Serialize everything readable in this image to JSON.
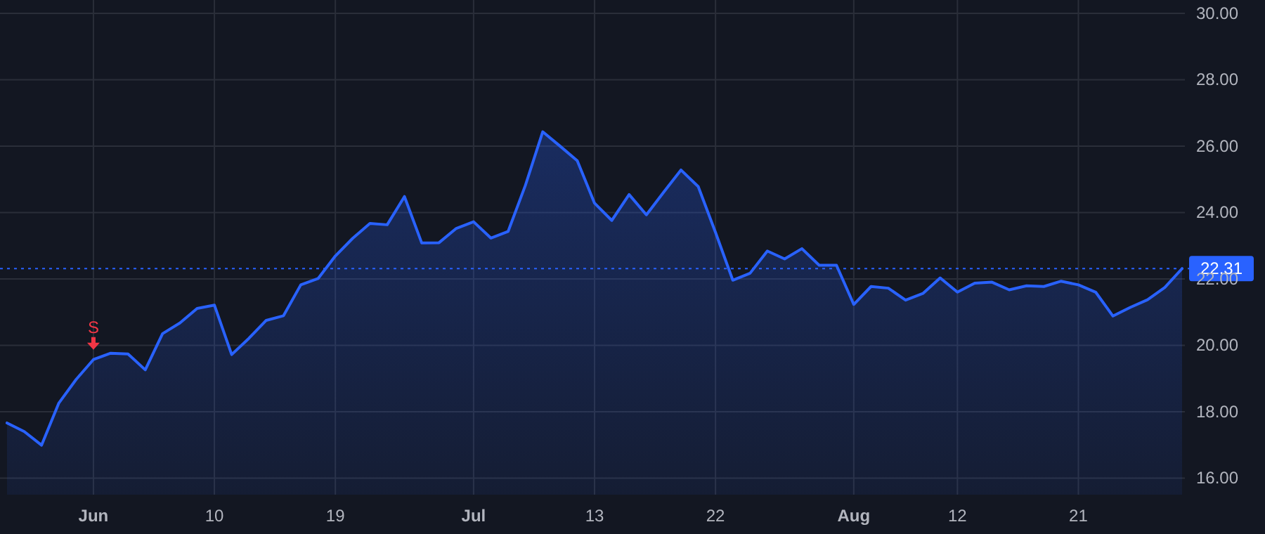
{
  "chart_data": {
    "type": "area",
    "categories": [
      null,
      null,
      null,
      null,
      null,
      "Jun",
      null,
      null,
      null,
      null,
      null,
      null,
      "10",
      null,
      null,
      null,
      null,
      null,
      null,
      "19",
      null,
      null,
      null,
      null,
      null,
      null,
      null,
      "Jul",
      null,
      null,
      null,
      null,
      null,
      null,
      "13",
      null,
      null,
      null,
      null,
      null,
      null,
      "22",
      null,
      null,
      null,
      null,
      null,
      null,
      null,
      "Aug",
      null,
      null,
      null,
      null,
      null,
      "12",
      null,
      null,
      null,
      null,
      null,
      null,
      "21",
      null,
      null,
      null,
      null,
      null,
      null
    ],
    "series": [
      {
        "color": "#2962ff",
        "values": [
          17.66,
          17.4,
          16.99,
          18.26,
          18.97,
          19.57,
          19.76,
          19.74,
          19.26,
          20.35,
          20.67,
          21.11,
          21.21,
          19.72,
          20.21,
          20.75,
          20.89,
          21.82,
          22.01,
          22.69,
          23.22,
          23.67,
          23.63,
          24.48,
          23.08,
          23.09,
          23.52,
          23.72,
          23.23,
          23.43,
          24.82,
          26.43,
          26.0,
          25.56,
          24.28,
          23.76,
          24.54,
          23.93,
          24.61,
          25.28,
          24.78,
          23.4,
          21.96,
          22.17,
          22.84,
          22.6,
          22.91,
          22.41,
          22.41,
          21.23,
          21.77,
          21.72,
          21.36,
          21.56,
          22.03,
          21.6,
          21.87,
          21.9,
          21.67,
          21.79,
          21.77,
          21.93,
          21.82,
          21.6,
          20.88,
          21.14,
          21.37,
          21.74,
          22.31
        ]
      }
    ],
    "ylim": [
      15.5,
      30.4
    ],
    "yticks": [
      {
        "value": 16,
        "label": "16.00"
      },
      {
        "value": 18,
        "label": "18.00"
      },
      {
        "value": 20,
        "label": "20.00"
      },
      {
        "value": 22,
        "label": "22.00"
      },
      {
        "value": 24,
        "label": "24.00"
      },
      {
        "value": 26,
        "label": "26.00"
      },
      {
        "value": 28,
        "label": "28.00"
      },
      {
        "value": 30,
        "label": "30.00"
      }
    ],
    "grid": true,
    "line_style": "solid",
    "ref_lines": [
      {
        "axis": "y",
        "value": 22.31,
        "label": "22.31",
        "color": "#2962ff",
        "line_style": "dotted"
      }
    ],
    "annotations": [
      {
        "text": "S",
        "x": "Jun",
        "y": 19.57
      }
    ]
  }
}
